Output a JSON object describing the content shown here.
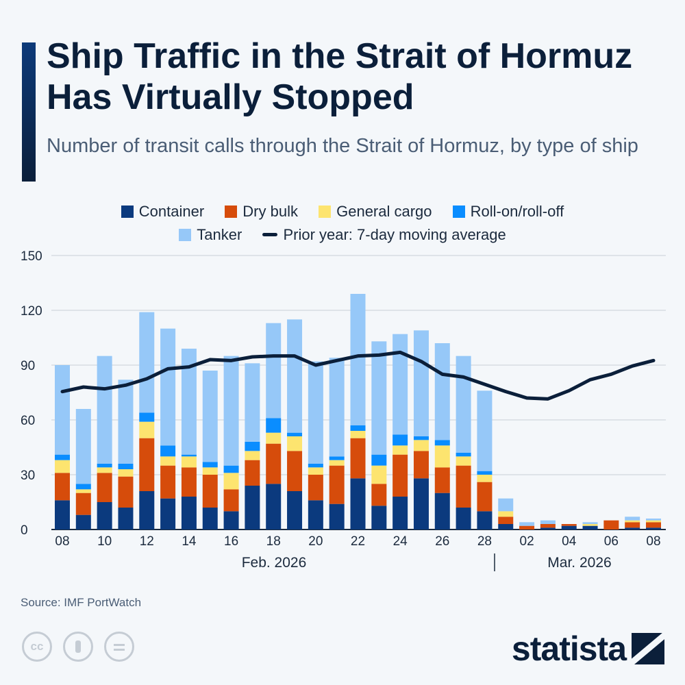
{
  "title": "Ship Traffic in the Strait of Hormuz Has Virtually Stopped",
  "subtitle": "Number of transit calls through the Strait of Hormuz, by type of ship",
  "source": "Source: IMF PortWatch",
  "brand": "statista",
  "license_icons": [
    "cc-icon",
    "attribution-icon",
    "no-derivatives-icon"
  ],
  "license_text": [
    "cc",
    "",
    ""
  ],
  "chart_data": {
    "type": "bar",
    "stacked": true,
    "ylim": [
      0,
      150
    ],
    "yticks": [
      0,
      30,
      60,
      90,
      120,
      150
    ],
    "ytick_labels": [
      "0",
      "30",
      "60",
      "90",
      "120",
      "150"
    ],
    "categories": [
      "Feb 08",
      "Feb 09",
      "Feb 10",
      "Feb 11",
      "Feb 12",
      "Feb 13",
      "Feb 14",
      "Feb 15",
      "Feb 16",
      "Feb 17",
      "Feb 18",
      "Feb 19",
      "Feb 20",
      "Feb 21",
      "Feb 22",
      "Feb 23",
      "Feb 24",
      "Feb 25",
      "Feb 26",
      "Feb 27",
      "Feb 28",
      "Mar 01",
      "Mar 02",
      "Mar 03",
      "Mar 04",
      "Mar 05",
      "Mar 06",
      "Mar 07",
      "Mar 08"
    ],
    "xtick_labels": [
      "08",
      "",
      "10",
      "",
      "12",
      "",
      "14",
      "",
      "16",
      "",
      "18",
      "",
      "20",
      "",
      "22",
      "",
      "24",
      "",
      "26",
      "",
      "28",
      "",
      "02",
      "",
      "04",
      "",
      "06",
      "",
      "08"
    ],
    "month_labels": [
      "Feb. 2026",
      "Mar. 2026"
    ],
    "series": [
      {
        "name": "Container",
        "color": "#0b3a7e",
        "values": [
          16,
          8,
          15,
          12,
          21,
          17,
          18,
          12,
          10,
          24,
          25,
          21,
          16,
          14,
          28,
          13,
          18,
          28,
          20,
          12,
          10,
          3,
          0,
          1,
          2,
          2,
          0,
          1,
          1
        ]
      },
      {
        "name": "Dry bulk",
        "color": "#d64c0b",
        "values": [
          15,
          12,
          16,
          17,
          29,
          18,
          16,
          18,
          12,
          14,
          22,
          22,
          14,
          21,
          22,
          12,
          23,
          15,
          14,
          23,
          16,
          4,
          2,
          2,
          1,
          0,
          5,
          3,
          3
        ]
      },
      {
        "name": "General cargo",
        "color": "#fde46f",
        "values": [
          7,
          2,
          3,
          4,
          9,
          5,
          6,
          4,
          9,
          5,
          6,
          8,
          4,
          3,
          4,
          10,
          5,
          6,
          12,
          5,
          4,
          3,
          0,
          0,
          0,
          1,
          0,
          1,
          1
        ]
      },
      {
        "name": "Roll-on/roll-off",
        "color": "#0a8dff",
        "values": [
          3,
          3,
          2,
          3,
          5,
          6,
          1,
          3,
          4,
          5,
          8,
          2,
          2,
          2,
          3,
          6,
          6,
          2,
          3,
          2,
          2,
          0,
          0,
          0,
          0,
          0,
          0,
          0,
          0
        ]
      },
      {
        "name": "Tanker",
        "color": "#96c8f8",
        "values": [
          49,
          41,
          59,
          46,
          55,
          64,
          58,
          50,
          60,
          43,
          52,
          62,
          56,
          54,
          72,
          62,
          55,
          58,
          53,
          53,
          44,
          7,
          2,
          2,
          0,
          1,
          0,
          2,
          1
        ]
      }
    ],
    "line": {
      "name": "Prior year: 7-day moving average",
      "color": "#0b1f3a",
      "values": [
        75.5,
        78,
        77,
        79,
        82.5,
        88,
        89,
        93,
        92.5,
        94.5,
        95,
        95,
        90,
        92.5,
        95,
        95.5,
        97,
        92,
        85,
        83.5,
        79.5,
        75.5,
        72,
        71.5,
        76,
        82,
        85,
        89.5,
        92.5
      ]
    }
  }
}
